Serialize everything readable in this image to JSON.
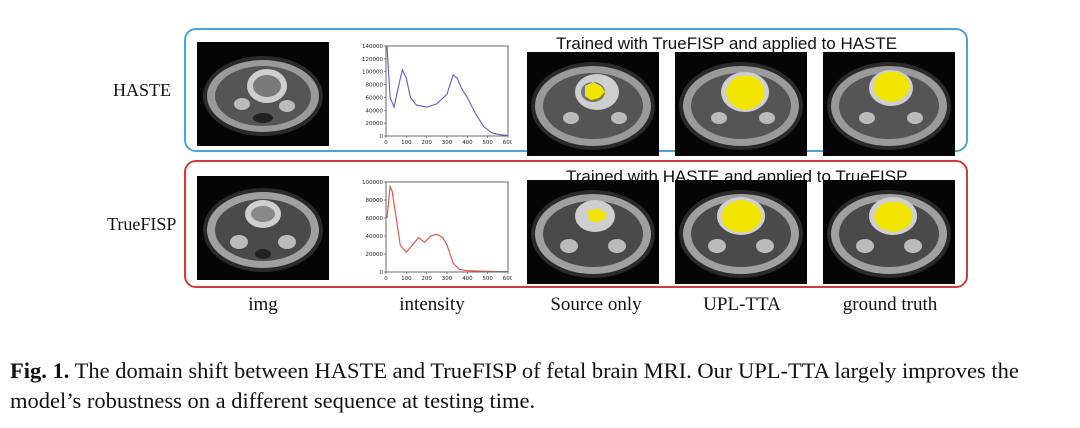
{
  "rows": [
    {
      "label": "HASTE",
      "panel_title": "Trained with TrueFISP and applied to HASTE",
      "histogram": {
        "type": "line",
        "color": "#5b5fc7",
        "ylim": [
          0,
          140000
        ],
        "xlim": [
          0,
          600
        ],
        "y_ticks": [
          "0",
          "20000",
          "40000",
          "60000",
          "80000",
          "100000",
          "120000",
          "140000"
        ],
        "x_ticks": [
          "0",
          "100",
          "200",
          "300",
          "400",
          "500",
          "600"
        ],
        "x": [
          5,
          20,
          40,
          60,
          80,
          100,
          120,
          150,
          200,
          250,
          300,
          330,
          350,
          370,
          400,
          440,
          480,
          520,
          560,
          600
        ],
        "y": [
          140000,
          60000,
          45000,
          75000,
          103000,
          90000,
          60000,
          48000,
          45000,
          50000,
          65000,
          95000,
          90000,
          75000,
          60000,
          35000,
          15000,
          5000,
          2000,
          1000
        ]
      }
    },
    {
      "label": "TrueFISP",
      "panel_title": "Trained with HASTE and applied to TrueFISP",
      "histogram": {
        "type": "line",
        "color": "#e04a3f",
        "ylim": [
          0,
          100000
        ],
        "xlim": [
          0,
          600
        ],
        "y_ticks": [
          "0",
          "20000",
          "40000",
          "60000",
          "80000",
          "100000"
        ],
        "x_ticks": [
          "0",
          "100",
          "200",
          "300",
          "400",
          "500",
          "600"
        ],
        "x": [
          5,
          20,
          30,
          50,
          70,
          100,
          130,
          160,
          190,
          220,
          250,
          280,
          300,
          330,
          360,
          400,
          450,
          500,
          560,
          600
        ],
        "y": [
          60000,
          95000,
          90000,
          60000,
          30000,
          22000,
          30000,
          38000,
          33000,
          40000,
          42000,
          38000,
          30000,
          10000,
          3000,
          1500,
          1000,
          800,
          600,
          500
        ]
      }
    }
  ],
  "columns": [
    "img",
    "intensity",
    "Source only",
    "UPL-TTA",
    "ground truth"
  ],
  "caption": {
    "fig_label": "Fig. 1.",
    "text": " The domain shift between HASTE and TrueFISP of fetal brain MRI. Our UPL-TTA largely improves the model’s robustness on a different sequence at testing time."
  },
  "colors": {
    "blue_panel": "#4aa3d8",
    "red_panel": "#d33a3a",
    "segmentation": "#f2e600"
  }
}
